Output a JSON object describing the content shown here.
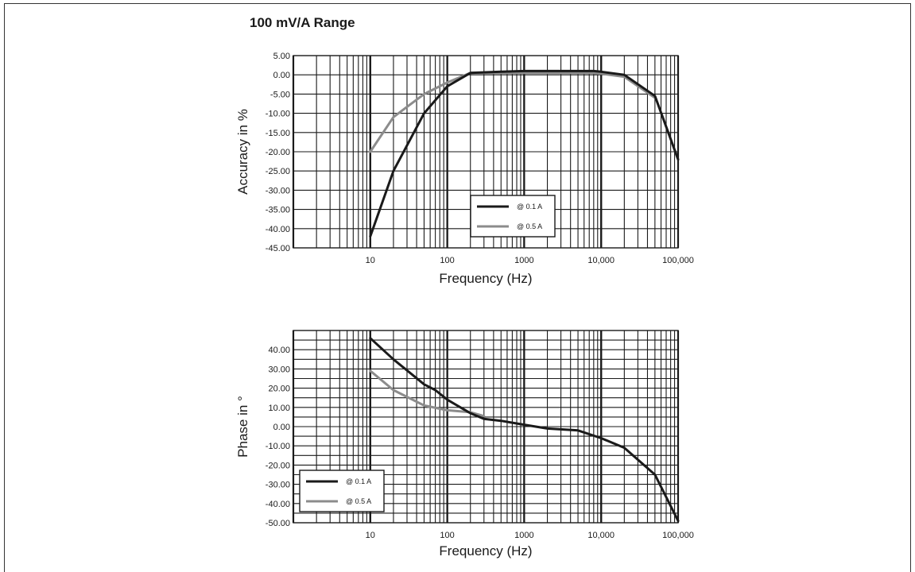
{
  "page_title": "100 mV/A Range",
  "chart_data": [
    {
      "type": "line",
      "title": "100 mV/A Range",
      "xlabel": "Frequency (Hz)",
      "ylabel": "Accuracy in %",
      "xscale": "log",
      "xlim": [
        1,
        100000
      ],
      "ylim": [
        -45,
        5
      ],
      "x_ticks": [
        10,
        100,
        1000,
        10000,
        100000
      ],
      "x_tick_labels": [
        "10",
        "100",
        "1000",
        "10,000",
        "100,000"
      ],
      "y_ticks": [
        5,
        0,
        -5,
        -10,
        -15,
        -20,
        -25,
        -30,
        -35,
        -40,
        -45
      ],
      "y_tick_labels": [
        "5.00",
        "0.00",
        "-5.00",
        "-10.00",
        "-15.00",
        "-20.00",
        "-25.00",
        "-30.00",
        "-35.00",
        "-40.00",
        "-45.00"
      ],
      "grid": true,
      "legend_position": "bottom-right",
      "series": [
        {
          "name": "@ 0.1 A",
          "color": "#1a1a1a",
          "x": [
            10,
            20,
            50,
            100,
            200,
            500,
            1000,
            2000,
            5000,
            8000,
            10000,
            20000,
            50000,
            100000
          ],
          "y": [
            -42,
            -25,
            -10,
            -3,
            0.5,
            0.8,
            1,
            1,
            1,
            1,
            0.8,
            0,
            -5.5,
            -22
          ]
        },
        {
          "name": "@ 0.5 A",
          "color": "#8c8c8c",
          "x": [
            10,
            20,
            50,
            100,
            200,
            500,
            1000,
            2000,
            5000,
            8000,
            10000,
            20000,
            50000
          ],
          "y": [
            -20,
            -11,
            -5,
            -2,
            0.5,
            0.5,
            0.5,
            0.5,
            0.5,
            0.5,
            0.3,
            -0.5,
            -6
          ]
        }
      ]
    },
    {
      "type": "line",
      "title": "",
      "xlabel": "Frequency (Hz)",
      "ylabel": "Phase in °",
      "xscale": "log",
      "xlim": [
        1,
        100000
      ],
      "ylim": [
        -50,
        50
      ],
      "x_ticks": [
        10,
        100,
        1000,
        10000,
        100000
      ],
      "x_tick_labels": [
        "10",
        "100",
        "1000",
        "10,000",
        "100,000"
      ],
      "y_ticks": [
        40,
        30,
        20,
        10,
        0,
        -10,
        -20,
        -30,
        -40,
        -50
      ],
      "y_tick_labels": [
        "40.00",
        "30.00",
        "20.00",
        "10.00",
        "0.00",
        "-10.00",
        "-20.00",
        "-30.00",
        "-40.00",
        "-50.00"
      ],
      "grid": true,
      "legend_position": "bottom-left",
      "series": [
        {
          "name": "@ 0.1 A",
          "color": "#1a1a1a",
          "x": [
            10,
            20,
            50,
            70,
            100,
            200,
            300,
            500,
            1000,
            2000,
            5000,
            10000,
            20000,
            50000,
            100000
          ],
          "y": [
            46,
            35,
            22,
            19,
            14,
            7,
            4,
            3,
            1,
            -1,
            -2,
            -6,
            -11,
            -25,
            -49
          ]
        },
        {
          "name": "@ 0.5 A",
          "color": "#8c8c8c",
          "x": [
            10,
            20,
            50,
            100,
            200,
            300
          ],
          "y": [
            29,
            19,
            11,
            8.5,
            7.5,
            5.5
          ]
        }
      ]
    }
  ]
}
